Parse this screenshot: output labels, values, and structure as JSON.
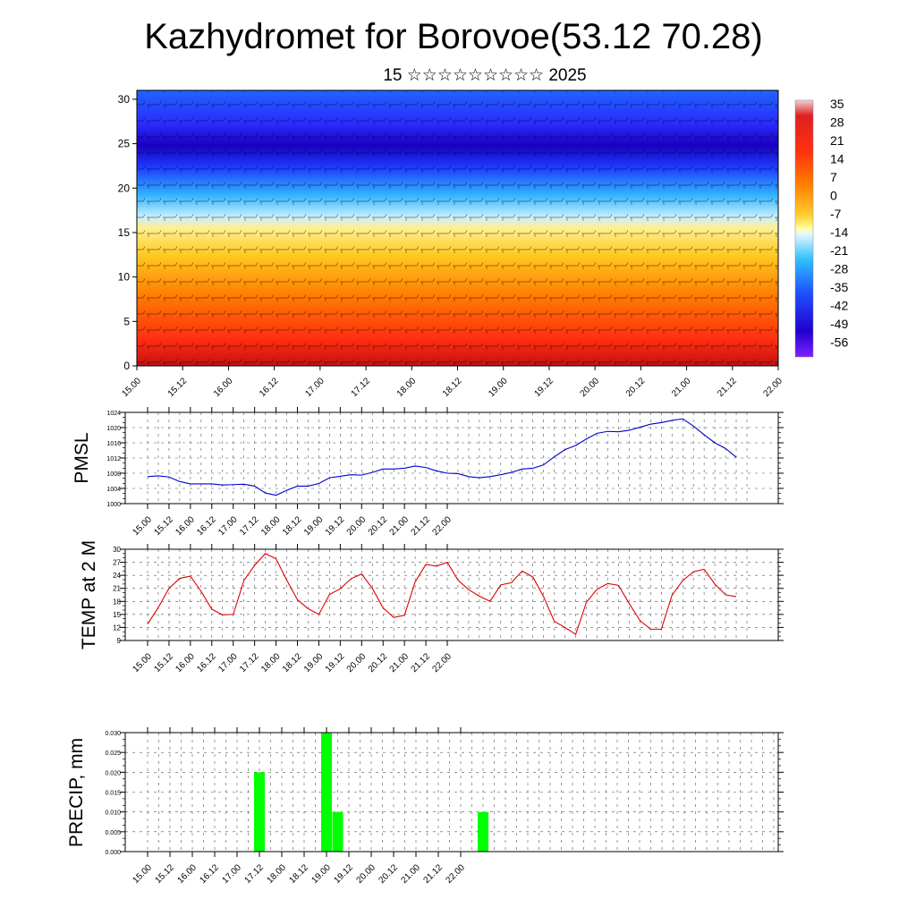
{
  "title": "Kazhydromet for Borovoe(53.12 70.28)",
  "subtitle": "15 ☆☆☆☆☆☆☆☆☆ 2025",
  "colors": {
    "pmsl_line": "#0000cc",
    "temp_line": "#dd0000",
    "precip_bar": "#00ff00"
  },
  "time_ticks": [
    "15.00",
    "15.12",
    "16.00",
    "16.12",
    "17.00",
    "17.12",
    "18.00",
    "18.12",
    "19.00",
    "19.12",
    "20.00",
    "20.12",
    "21.00",
    "21.12",
    "22.00"
  ],
  "chart_data": [
    {
      "type": "heatmap",
      "description": "cross-section colour field with wind barbs",
      "y_ticks": [
        "0",
        "5",
        "10",
        "15",
        "20",
        "25",
        "30"
      ],
      "ylim": [
        0,
        31
      ],
      "x_ticks_ref": "time_ticks",
      "colorbar_labels": [
        "35",
        "28",
        "21",
        "14",
        "7",
        "0",
        "-7",
        "-14",
        "-21",
        "-28",
        "-35",
        "-42",
        "-49",
        "-56"
      ],
      "colorbar_min": -63,
      "colorbar_max": 42
    },
    {
      "type": "line",
      "ylabel": "PMSL",
      "ylim": [
        1000,
        1024
      ],
      "y_ticks": [
        "1000",
        "1004",
        "1008",
        "1012",
        "1016",
        "1020",
        "1024"
      ],
      "x_ticks_ref": "time_ticks",
      "x": [
        0.0,
        0.125,
        0.25,
        0.375,
        0.5,
        0.625,
        0.75,
        0.875,
        1.0,
        1.125,
        1.25,
        1.375,
        1.5,
        1.625,
        1.75,
        1.875,
        2.0,
        2.125,
        2.25,
        2.375,
        2.5,
        2.625,
        2.75,
        2.875,
        3.0,
        3.125,
        3.25,
        3.375,
        3.5,
        3.625,
        3.75,
        3.875,
        4.0,
        4.125,
        4.25,
        4.375,
        4.5,
        4.625,
        4.75,
        4.875,
        5.0,
        5.125,
        5.25,
        5.375,
        5.5,
        5.625,
        5.75,
        5.875,
        6.0,
        6.125,
        6.25,
        6.375,
        6.5,
        6.625,
        6.75,
        6.875
      ],
      "series": [
        {
          "values": [
            1007.1,
            1007.3,
            1007.0,
            1005.8,
            1005.2,
            1005.2,
            1005.2,
            1004.9,
            1005.0,
            1005.1,
            1004.6,
            1002.8,
            1002.2,
            1003.5,
            1004.6,
            1004.6,
            1005.3,
            1006.8,
            1007.2,
            1007.6,
            1007.5,
            1008.2,
            1009.1,
            1009.1,
            1009.3,
            1009.9,
            1009.5,
            1008.6,
            1008.0,
            1007.9,
            1007.1,
            1006.8,
            1007.1,
            1007.6,
            1008.2,
            1009.1,
            1009.3,
            1010.2,
            1012.3,
            1014.2,
            1015.3,
            1017.0,
            1018.5,
            1019.0,
            1018.9,
            1019.3,
            1020.1,
            1020.9,
            1021.3,
            1021.9,
            1022.3,
            1020.4,
            1018.1,
            1016.0,
            1014.5,
            1012.2
          ]
        }
      ]
    },
    {
      "type": "line",
      "ylabel": "TEMP at 2 M",
      "ylim": [
        9,
        30
      ],
      "y_ticks": [
        "9",
        "12",
        "15",
        "18",
        "21",
        "24",
        "27",
        "30"
      ],
      "x_ticks_ref": "time_ticks",
      "x": [
        0.0,
        0.125,
        0.25,
        0.375,
        0.5,
        0.625,
        0.75,
        0.875,
        1.0,
        1.125,
        1.25,
        1.375,
        1.5,
        1.625,
        1.75,
        1.875,
        2.0,
        2.125,
        2.25,
        2.375,
        2.5,
        2.625,
        2.75,
        2.875,
        3.0,
        3.125,
        3.25,
        3.375,
        3.5,
        3.625,
        3.75,
        3.875,
        4.0,
        4.125,
        4.25,
        4.375,
        4.5,
        4.625,
        4.75,
        4.875,
        5.0,
        5.125,
        5.25,
        5.375,
        5.5,
        5.625,
        5.75,
        5.875,
        6.0,
        6.125,
        6.25,
        6.375,
        6.5,
        6.625,
        6.75,
        6.875
      ],
      "series": [
        {
          "values": [
            12.8,
            16.6,
            21.0,
            23.3,
            23.8,
            20.3,
            16.2,
            14.9,
            15.0,
            22.8,
            26.3,
            29.0,
            27.8,
            22.9,
            18.4,
            16.3,
            15.0,
            19.6,
            20.9,
            23.2,
            24.3,
            21.0,
            16.5,
            14.3,
            14.8,
            22.5,
            26.5,
            26.1,
            27.0,
            22.9,
            20.7,
            19.2,
            18.0,
            21.8,
            22.3,
            25.0,
            23.6,
            19.1,
            13.4,
            12.0,
            10.4,
            17.8,
            20.8,
            22.1,
            21.7,
            17.5,
            13.6,
            11.6,
            11.6,
            19.4,
            22.8,
            24.8,
            25.4,
            22.0,
            19.5,
            19.1
          ]
        }
      ]
    },
    {
      "type": "bar",
      "ylabel": "PRECIP, mm",
      "ylim": [
        0,
        0.03
      ],
      "y_ticks": [
        "0.000",
        "0.005",
        "0.010",
        "0.015",
        "0.020",
        "0.025",
        "0.030"
      ],
      "x_ticks_ref": "time_ticks",
      "x": [
        1.25,
        2.0,
        2.125,
        3.75
      ],
      "values": [
        0.02,
        0.03,
        0.01,
        0.01
      ]
    }
  ]
}
